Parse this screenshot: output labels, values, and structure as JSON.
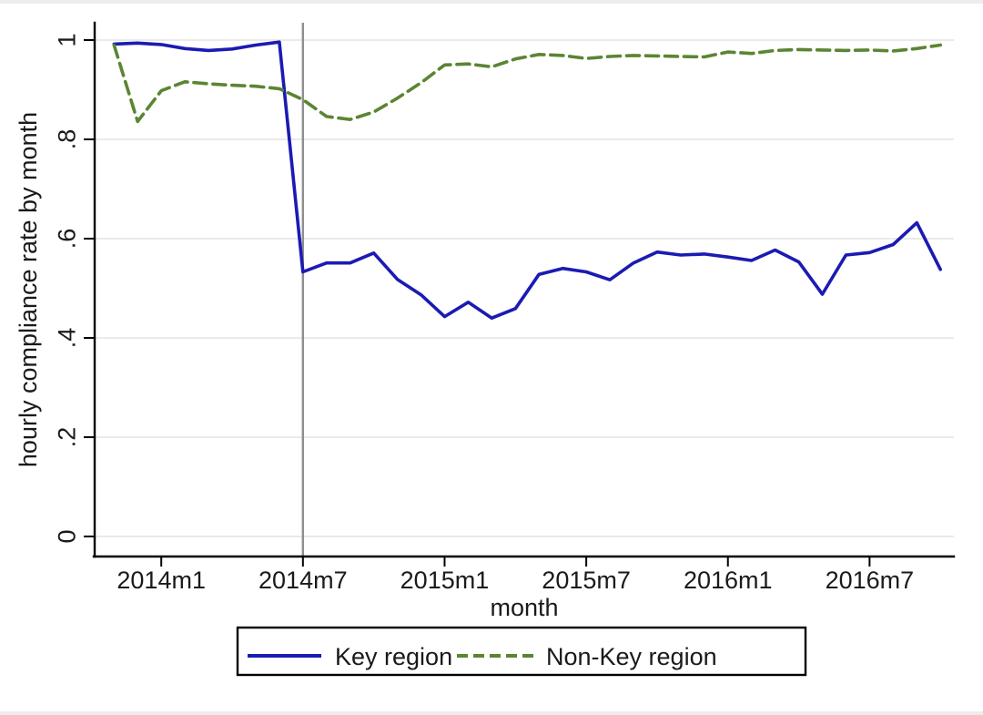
{
  "chart_data": {
    "type": "line",
    "title": "",
    "xlabel": "month",
    "ylabel": "hourly compliance rate by month",
    "ylim": [
      0,
      1
    ],
    "grid": "horizontal",
    "legend_position": "bottom-outside",
    "y_ticks": [
      0,
      0.2,
      0.4,
      0.6,
      0.8,
      1
    ],
    "y_tick_labels": [
      "0",
      ".2",
      ".4",
      ".6",
      ".8",
      "1"
    ],
    "x_tick_labels": [
      "2014m1",
      "2014m7",
      "2015m1",
      "2015m7",
      "2016m1",
      "2016m7"
    ],
    "x_tick_indices": [
      2,
      8,
      14,
      20,
      26,
      32
    ],
    "x": [
      "2013m11",
      "2013m12",
      "2014m1",
      "2014m2",
      "2014m3",
      "2014m4",
      "2014m5",
      "2014m6",
      "2014m7",
      "2014m8",
      "2014m9",
      "2014m10",
      "2014m11",
      "2014m12",
      "2015m1",
      "2015m2",
      "2015m3",
      "2015m4",
      "2015m5",
      "2015m6",
      "2015m7",
      "2015m8",
      "2015m9",
      "2015m10",
      "2015m11",
      "2015m12",
      "2016m1",
      "2016m2",
      "2016m3",
      "2016m4",
      "2016m5",
      "2016m6",
      "2016m7",
      "2016m8",
      "2016m9",
      "2016m10"
    ],
    "series": [
      {
        "name": "Key region",
        "color": "#1b1bb3",
        "dash": "solid",
        "values": [
          0.992,
          0.994,
          0.991,
          0.983,
          0.979,
          0.982,
          0.99,
          0.996,
          0.533,
          0.551,
          0.551,
          0.571,
          0.518,
          0.487,
          0.443,
          0.472,
          0.44,
          0.459,
          0.528,
          0.54,
          0.533,
          0.517,
          0.551,
          0.573,
          0.567,
          0.569,
          0.563,
          0.556,
          0.577,
          0.553,
          0.488,
          0.567,
          0.572,
          0.588,
          0.632,
          0.538
        ]
      },
      {
        "name": "Non-Key region",
        "color": "#5b8533",
        "dash": "dashed",
        "values": [
          0.99,
          0.836,
          0.898,
          0.916,
          0.912,
          0.909,
          0.907,
          0.902,
          0.88,
          0.846,
          0.84,
          0.855,
          0.883,
          0.914,
          0.95,
          0.952,
          0.946,
          0.962,
          0.971,
          0.969,
          0.963,
          0.967,
          0.969,
          0.968,
          0.967,
          0.966,
          0.976,
          0.973,
          0.979,
          0.981,
          0.98,
          0.979,
          0.98,
          0.978,
          0.983,
          0.99
        ]
      }
    ],
    "reference_line": {
      "x": "2014m7",
      "orientation": "vertical",
      "color": "#8f8f8f"
    }
  }
}
